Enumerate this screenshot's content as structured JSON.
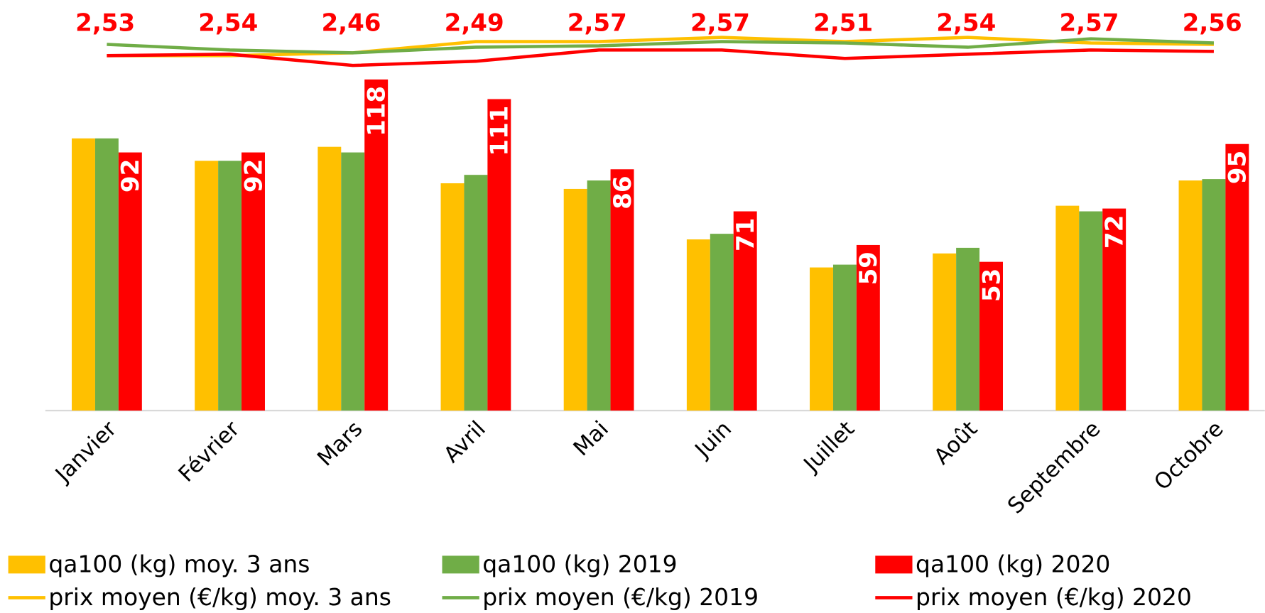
{
  "chart_data": {
    "type": "bar",
    "categories": [
      "Janvier",
      "Février",
      "Mars",
      "Avril",
      "Mai",
      "Juin",
      "Juillet",
      "Août",
      "Septembre",
      "Octobre"
    ],
    "ylim": [
      0,
      140
    ],
    "y2lim": [
      0,
      2.8
    ],
    "series": [
      {
        "name": "qa100 (kg) moy. 3 ans",
        "type": "bar",
        "color": "#ffc000",
        "values": [
          97,
          89,
          94,
          81,
          79,
          61,
          51,
          56,
          73,
          82
        ]
      },
      {
        "name": "qa100 (kg) 2019",
        "type": "bar",
        "color": "#70ad47",
        "values": [
          97,
          89,
          92,
          84,
          82,
          63,
          52,
          58,
          71,
          82.5
        ]
      },
      {
        "name": "qa100 (kg) 2020",
        "type": "bar",
        "color": "#ff0000",
        "values": [
          92,
          92,
          118,
          111,
          86,
          71,
          59,
          53,
          72,
          95
        ]
      },
      {
        "name": "prix moyen (€/kg) moy. 3 ans",
        "type": "line",
        "axis": "y2",
        "color": "#ffc000",
        "values": [
          2.53,
          2.53,
          2.55,
          2.63,
          2.63,
          2.66,
          2.63,
          2.66,
          2.62,
          2.61
        ]
      },
      {
        "name": "prix moyen (€/kg) 2019",
        "type": "line",
        "axis": "y2",
        "color": "#70ad47",
        "values": [
          2.61,
          2.57,
          2.55,
          2.59,
          2.6,
          2.63,
          2.62,
          2.59,
          2.65,
          2.62
        ]
      },
      {
        "name": "prix moyen (€/kg) 2020",
        "type": "line",
        "axis": "y2",
        "color": "#ff0000",
        "values": [
          2.53,
          2.54,
          2.46,
          2.49,
          2.57,
          2.57,
          2.51,
          2.54,
          2.57,
          2.56
        ],
        "value_labels": [
          "2,53",
          "2,54",
          "2,46",
          "2,49",
          "2,57",
          "2,57",
          "2,51",
          "2,54",
          "2,57",
          "2,56"
        ]
      }
    ]
  }
}
